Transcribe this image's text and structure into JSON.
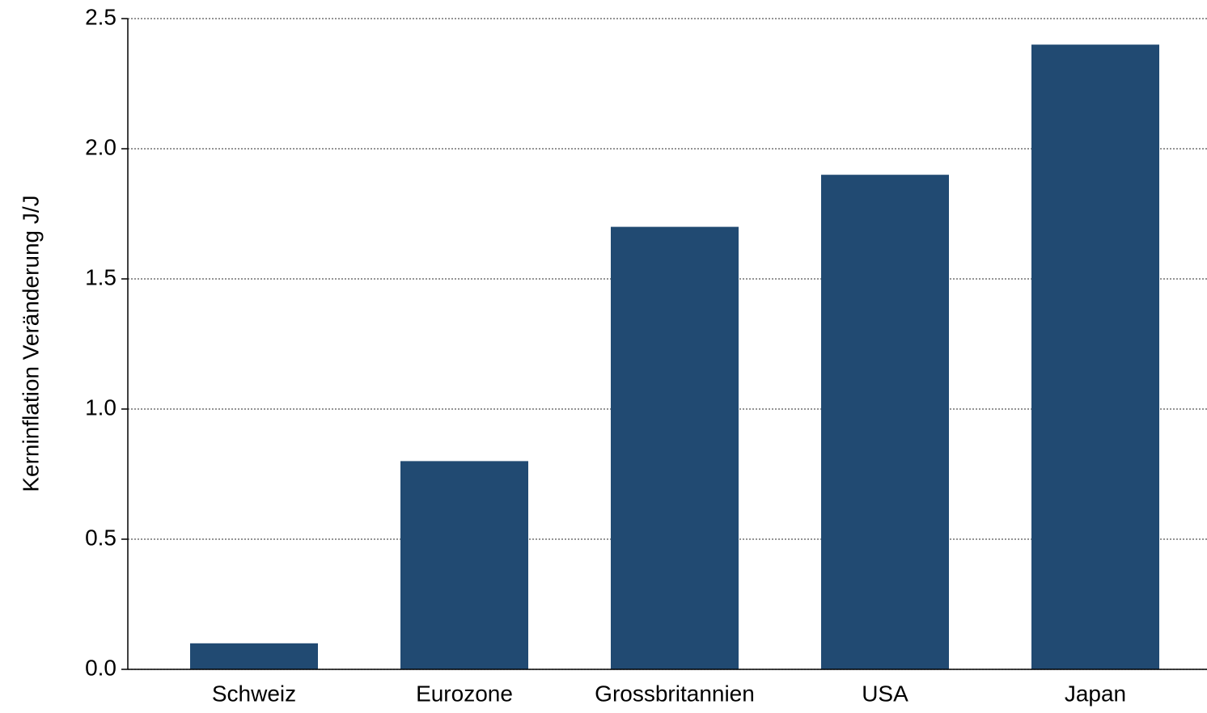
{
  "chart_data": {
    "type": "bar",
    "y_label": "Kerninflation Veränderung J/J",
    "categories": [
      "Schweiz",
      "Eurozone",
      "Grossbritannien",
      "USA",
      "Japan"
    ],
    "values": [
      0.1,
      0.8,
      1.7,
      1.9,
      2.4
    ],
    "color": "#214a72",
    "ylim": [
      0,
      2.5
    ],
    "yticks": [
      {
        "value": 0,
        "label": "0.0"
      },
      {
        "value": 0.5,
        "label": "0.5"
      },
      {
        "value": 1,
        "label": "1.0"
      },
      {
        "value": 1.5,
        "label": "1.5"
      },
      {
        "value": 2,
        "label": "2.0"
      },
      {
        "value": 2.5,
        "label": "2.5"
      }
    ],
    "grid": true
  }
}
